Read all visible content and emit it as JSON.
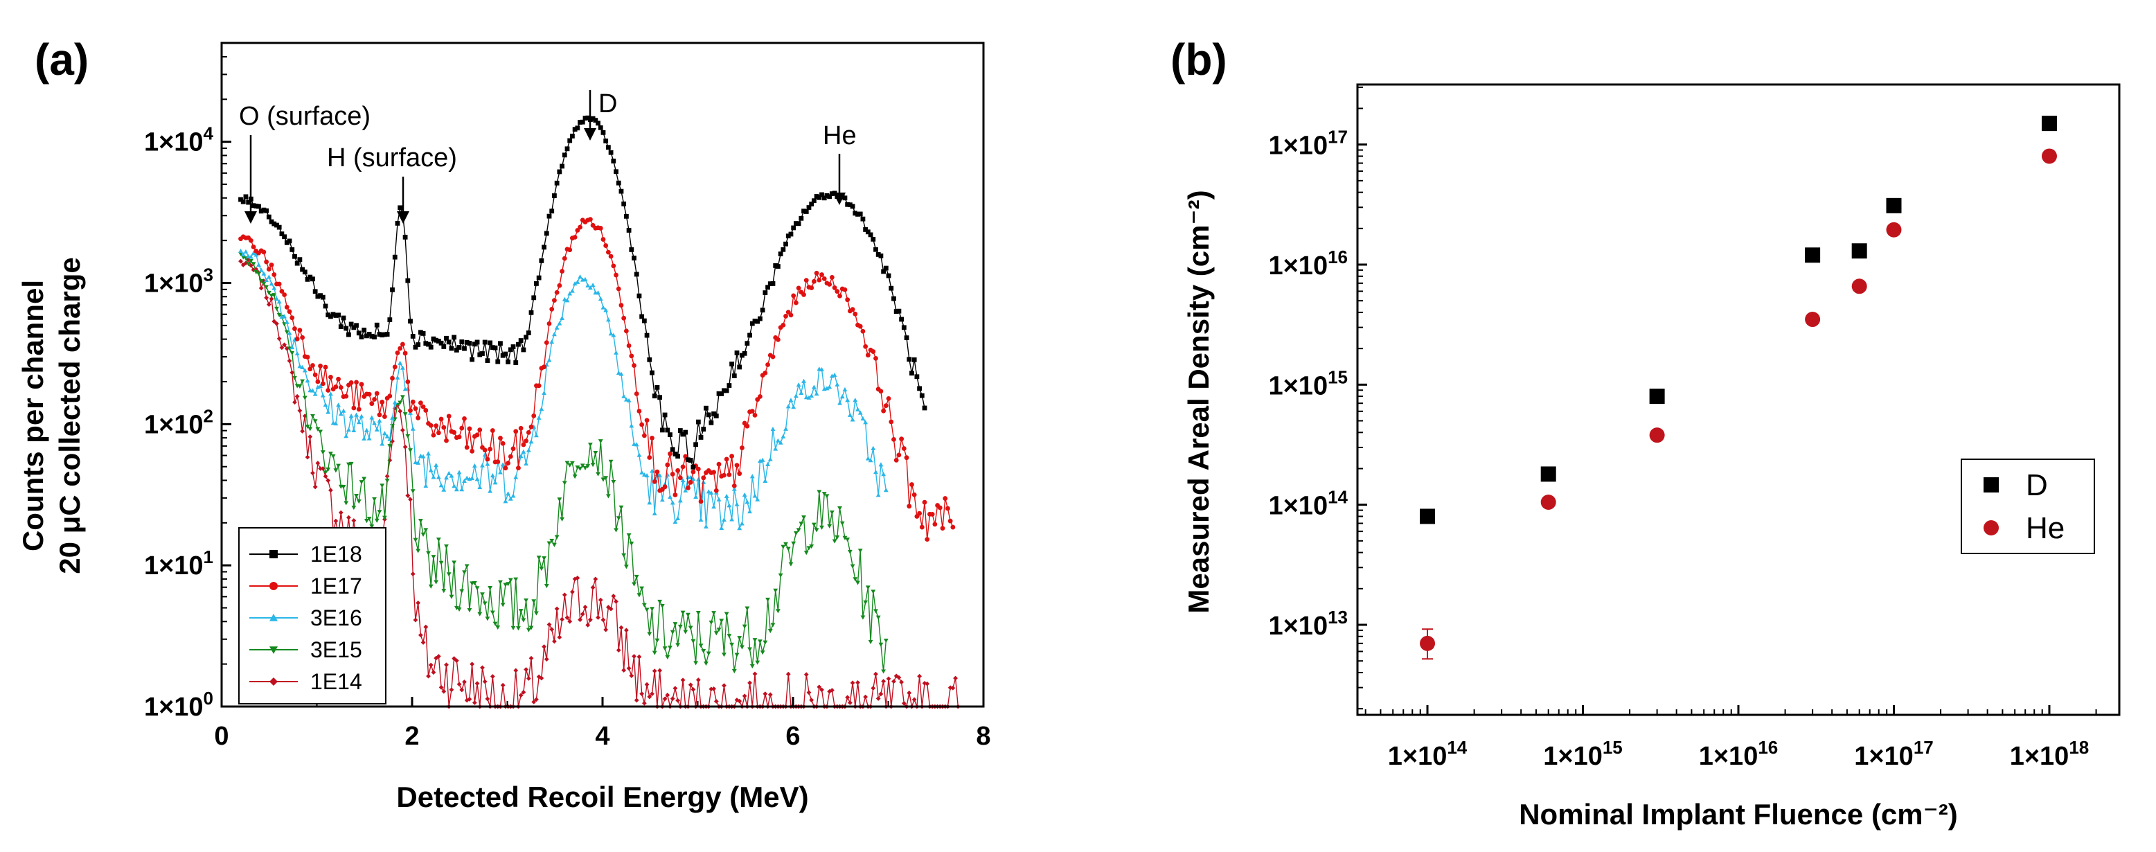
{
  "chart_data": [
    {
      "panel": "(a)",
      "type": "scatter",
      "xlabel": "Detected Recoil Energy (MeV)",
      "ylabel_line1": "Counts per channel",
      "ylabel_line2": "20 μC collected charge",
      "xlim": [
        0,
        8
      ],
      "ylim_log10": [
        0,
        4.7
      ],
      "yscale": "log",
      "x_ticks": [
        0,
        2,
        4,
        6,
        8
      ],
      "x_tick_labels": [
        "0",
        "2",
        "4",
        "6",
        "8"
      ],
      "y_ticks_log10": [
        0,
        1,
        2,
        3,
        4
      ],
      "y_tick_labels": [
        "1×10⁰",
        "1×10¹",
        "1×10²",
        "1×10³",
        "1×10⁴"
      ],
      "annotations": [
        {
          "text": "O (surface)",
          "x": 0.3,
          "y": 2500
        },
        {
          "text": "H (surface)",
          "x": 1.88,
          "y": 3000
        },
        {
          "text": "D",
          "x": 3.85,
          "y": 14500
        },
        {
          "text": "He",
          "x": 6.4,
          "y": 4200
        }
      ],
      "legend_position": "bottom-left",
      "series": [
        {
          "name": "1E18",
          "color": "#000000",
          "marker": "square",
          "shape": {
            "base": 1.2,
            "x_start": 0.2,
            "x_end": 7.4,
            "components": [
              [
                0.2,
                3400,
                0.45
              ],
              [
                1.88,
                3200,
                0.05
              ],
              [
                3.85,
                14500,
                0.26
              ],
              [
                6.4,
                4200,
                0.42
              ]
            ],
            "floor": [
              [
                0.6,
                500
              ],
              [
                2.2,
                400
              ],
              [
                3.0,
                300
              ],
              [
                4.9,
                60
              ],
              [
                5.4,
                200
              ],
              [
                7.1,
                25
              ]
            ]
          }
        },
        {
          "name": "1E17",
          "color": "#e01010",
          "marker": "circle",
          "shape": {
            "base": 0.8,
            "x_start": 0.2,
            "x_end": 7.7,
            "components": [
              [
                0.2,
                1800,
                0.35
              ],
              [
                1.88,
                280,
                0.06
              ],
              [
                3.85,
                2700,
                0.25
              ],
              [
                6.3,
                1050,
                0.38
              ]
            ],
            "floor": [
              [
                0.6,
                250
              ],
              [
                2.2,
                100
              ],
              [
                3.0,
                60
              ],
              [
                4.9,
                40
              ],
              [
                5.4,
                30
              ],
              [
                7.1,
                20
              ]
            ]
          }
        },
        {
          "name": "3E16",
          "color": "#29b6e8",
          "marker": "triangle-up",
          "shape": {
            "base": 0.6,
            "x_start": 0.2,
            "x_end": 7.0,
            "components": [
              [
                0.2,
                1500,
                0.33
              ],
              [
                1.88,
                180,
                0.07
              ],
              [
                3.8,
                1050,
                0.25
              ],
              [
                6.3,
                190,
                0.38
              ]
            ],
            "floor": [
              [
                0.6,
                200
              ],
              [
                2.2,
                50
              ],
              [
                3.0,
                40
              ],
              [
                4.9,
                30
              ],
              [
                5.4,
                20
              ],
              [
                7.0,
                10
              ]
            ]
          }
        },
        {
          "name": "3E15",
          "color": "#14891d",
          "marker": "triangle-down",
          "shape": {
            "base": 0.4,
            "x_start": 0.2,
            "x_end": 7.0,
            "components": [
              [
                0.2,
                1400,
                0.32
              ],
              [
                1.88,
                120,
                0.08
              ],
              [
                3.85,
                65,
                0.24
              ],
              [
                6.3,
                20,
                0.3
              ]
            ],
            "floor": [
              [
                0.6,
                120
              ],
              [
                2.2,
                10
              ],
              [
                3.0,
                5
              ],
              [
                4.9,
                3
              ],
              [
                5.4,
                3
              ],
              [
                7.0,
                2
              ]
            ]
          }
        },
        {
          "name": "1E14",
          "color": "#c01020",
          "marker": "diamond",
          "shape": {
            "base": 0.2,
            "x_start": 0.2,
            "x_end": 7.75,
            "components": [
              [
                0.2,
                1300,
                0.3
              ],
              [
                1.85,
                130,
                0.08
              ],
              [
                3.85,
                5,
                0.3
              ]
            ],
            "floor": [
              [
                0.6,
                100
              ],
              [
                2.2,
                2
              ],
              [
                3.0,
                1
              ],
              [
                4.5,
                1
              ],
              [
                7.75,
                1
              ]
            ]
          }
        }
      ]
    },
    {
      "panel": "(b)",
      "type": "scatter",
      "xlabel": "Nominal Implant Fluence (cm⁻²)",
      "ylabel": "Measured Areal Density (cm⁻²)",
      "xscale": "log",
      "yscale": "log",
      "xlim_log10": [
        13.55,
        18.45
      ],
      "ylim_log10": [
        12.25,
        17.5
      ],
      "x_ticks_log10": [
        14,
        15,
        16,
        17,
        18
      ],
      "x_tick_labels": [
        "1×10¹⁴",
        "1×10¹⁵",
        "1×10¹⁶",
        "1×10¹⁷",
        "1×10¹⁸"
      ],
      "y_ticks_log10": [
        13,
        14,
        15,
        16,
        17
      ],
      "y_tick_labels": [
        "1×10¹³",
        "1×10¹⁴",
        "1×10¹⁵",
        "1×10¹⁶",
        "1×10¹⁷"
      ],
      "legend_position": "center-right",
      "series": [
        {
          "name": "D",
          "color": "#000000",
          "marker": "square",
          "x": [
            100000000000000.0,
            600000000000000.0,
            3000000000000000.0,
            3e+16,
            6e+16,
            1e+17,
            1e+18
          ],
          "y": [
            80000000000000.0,
            180000000000000.0,
            800000000000000.0,
            1.2e+16,
            1.3e+16,
            3.1e+16,
            1.5e+17
          ]
        },
        {
          "name": "He",
          "color": "#c0141c",
          "marker": "circle",
          "x": [
            100000000000000.0,
            600000000000000.0,
            3000000000000000.0,
            3e+16,
            6e+16,
            1e+17,
            1e+18
          ],
          "y": [
            7000000000000.0,
            105000000000000.0,
            380000000000000.0,
            3500000000000000.0,
            6600000000000000.0,
            1.95e+16,
            8e+16
          ],
          "y_err_low": [
            5200000000000.0,
            null,
            null,
            null,
            null,
            null,
            null
          ],
          "y_err_high": [
            9200000000000.0,
            null,
            null,
            null,
            null,
            null,
            null
          ]
        }
      ]
    }
  ]
}
